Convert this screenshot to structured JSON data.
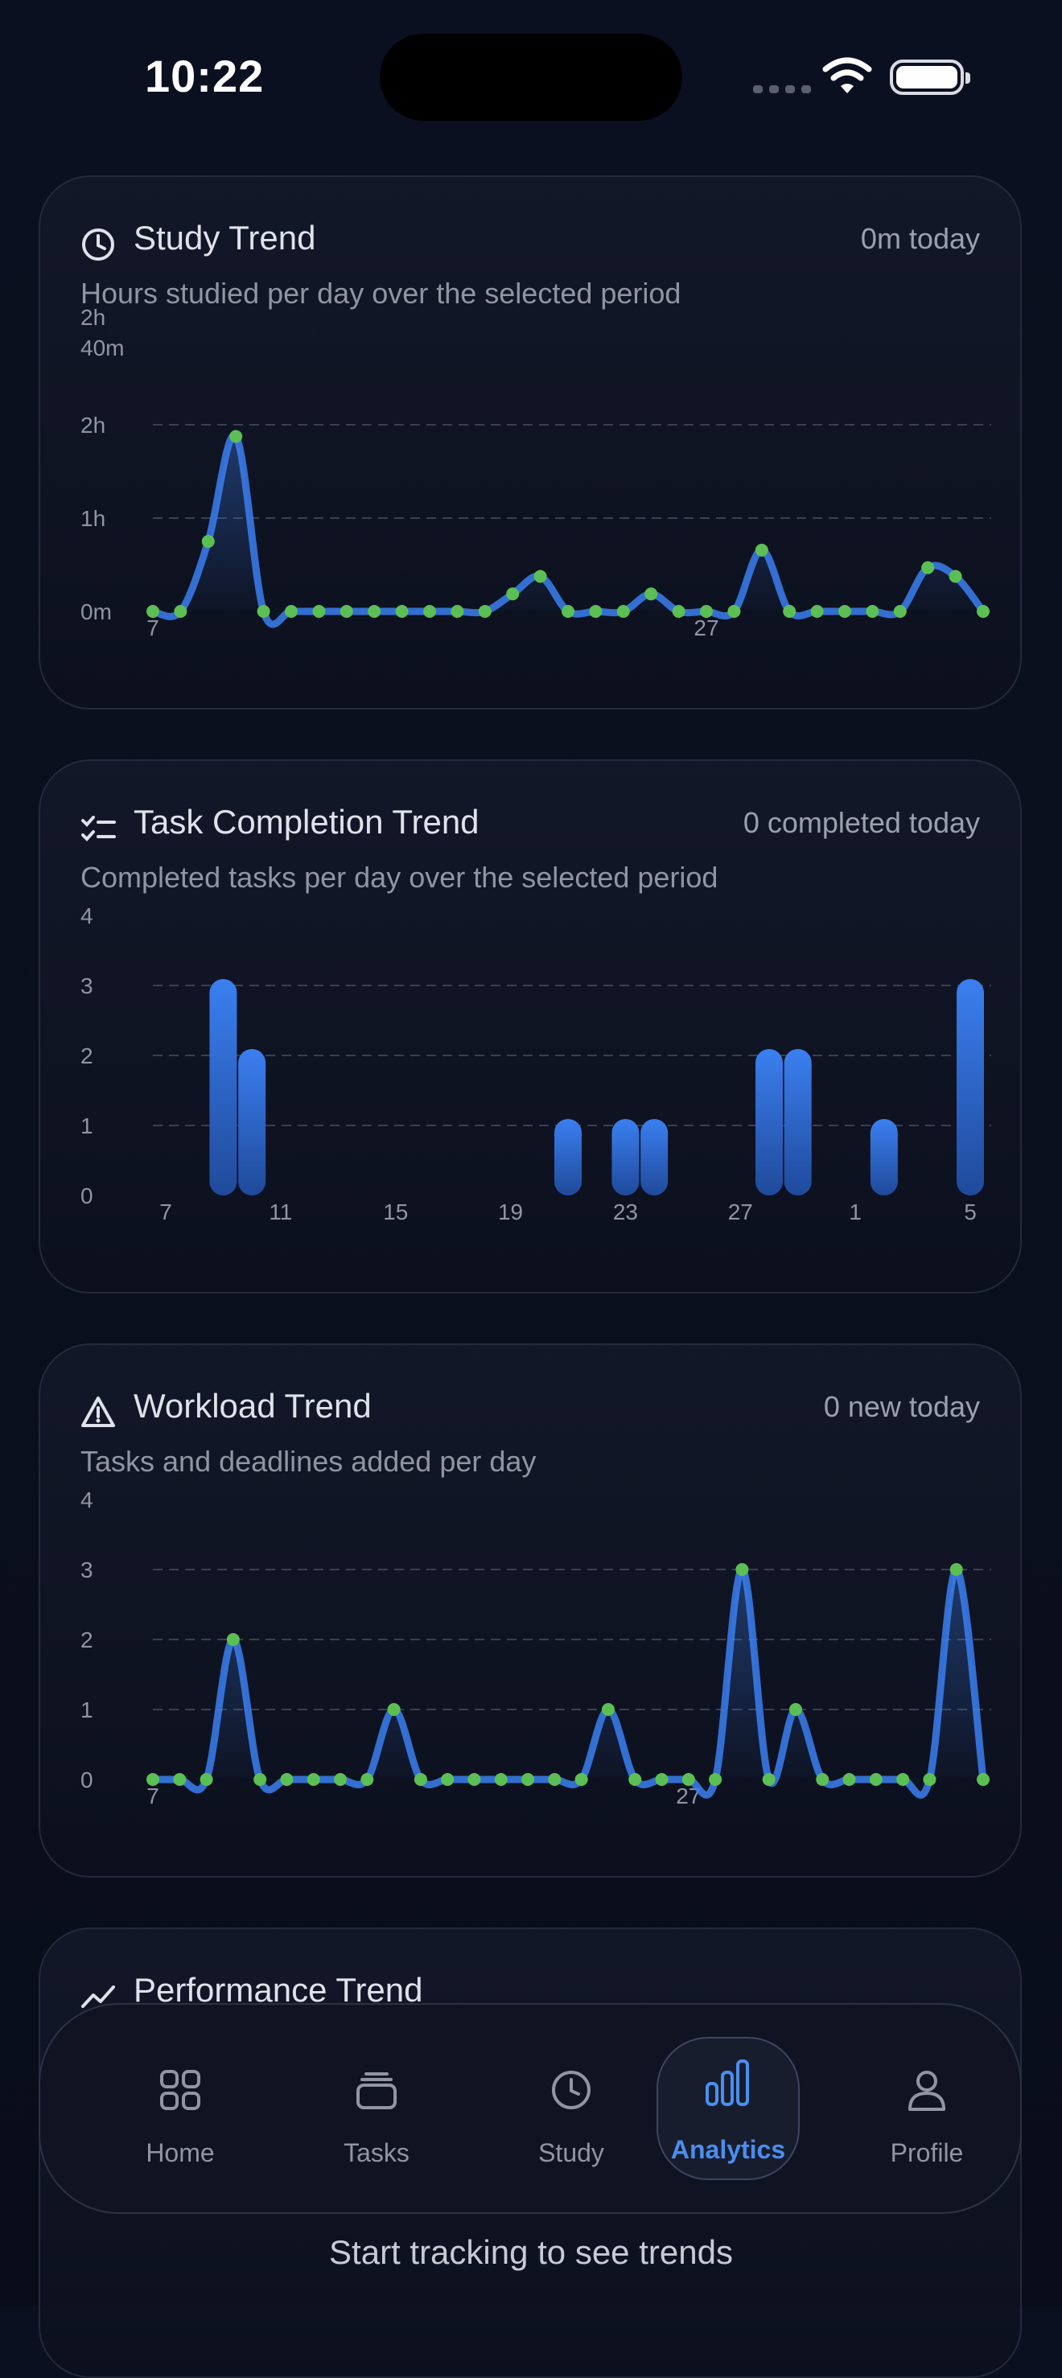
{
  "status": {
    "time": "10:22"
  },
  "cards": [
    {
      "title": "Study Trend",
      "meta": "0m today",
      "subtitle": "Hours studied per day over the selected period",
      "icon": "clock-icon",
      "chart_data": {
        "type": "line",
        "y_ticks": [
          "0m",
          "1h",
          "2h",
          "2h\n40m"
        ],
        "x_tick_labels": [
          {
            "index": 0,
            "label": "7"
          },
          {
            "index": 20,
            "label": "27"
          }
        ],
        "ylim": [
          0,
          160
        ],
        "unit": "minutes",
        "values": [
          0,
          0,
          40,
          100,
          0,
          0,
          0,
          0,
          0,
          0,
          0,
          0,
          0,
          10,
          20,
          0,
          0,
          0,
          10,
          0,
          0,
          0,
          35,
          0,
          0,
          0,
          0,
          0,
          25,
          20,
          0
        ]
      }
    },
    {
      "title": "Task Completion Trend",
      "meta": "0 completed today",
      "subtitle": "Completed tasks per day over the selected period",
      "icon": "checklist-icon",
      "chart_data": {
        "type": "bar",
        "y_ticks": [
          "0",
          "1",
          "2",
          "3",
          "4"
        ],
        "x_tick_labels": [
          {
            "index": 0,
            "label": "7"
          },
          {
            "index": 4,
            "label": "11"
          },
          {
            "index": 8,
            "label": "15"
          },
          {
            "index": 12,
            "label": "19"
          },
          {
            "index": 16,
            "label": "23"
          },
          {
            "index": 20,
            "label": "27"
          },
          {
            "index": 24,
            "label": "1"
          },
          {
            "index": 28,
            "label": "5"
          }
        ],
        "ylim": [
          0,
          4
        ],
        "values": [
          0,
          0,
          3,
          2,
          0,
          0,
          0,
          0,
          0,
          0,
          0,
          0,
          0,
          0,
          1,
          0,
          1,
          1,
          0,
          0,
          0,
          2,
          2,
          0,
          0,
          1,
          0,
          0,
          3
        ]
      }
    },
    {
      "title": "Workload Trend",
      "meta": "0 new today",
      "subtitle": "Tasks and deadlines added per day",
      "icon": "warning-icon",
      "chart_data": {
        "type": "line",
        "y_ticks": [
          "0",
          "1",
          "2",
          "3",
          "4"
        ],
        "x_tick_labels": [
          {
            "index": 0,
            "label": "7"
          },
          {
            "index": 20,
            "label": "27"
          }
        ],
        "ylim": [
          0,
          4
        ],
        "values": [
          0,
          0,
          0,
          2,
          0,
          0,
          0,
          0,
          0,
          1,
          0,
          0,
          0,
          0,
          0,
          0,
          0,
          1,
          0,
          0,
          0,
          0,
          3,
          0,
          1,
          0,
          0,
          0,
          0,
          0,
          3,
          0
        ]
      }
    },
    {
      "title": "Performance Trend",
      "icon": "trend-icon"
    }
  ],
  "nav": {
    "items": [
      {
        "label": "Home",
        "icon": "grid-icon"
      },
      {
        "label": "Tasks",
        "icon": "stack-icon"
      },
      {
        "label": "Study",
        "icon": "clock-icon"
      },
      {
        "label": "Analytics",
        "icon": "bar-chart-icon",
        "active": true
      },
      {
        "label": "Profile",
        "icon": "person-icon"
      }
    ]
  },
  "empty_state": "Start tracking to see trends",
  "colors": {
    "accent": "#3b7ff0",
    "point": "#5cbf54",
    "grid": "#3a4052"
  }
}
